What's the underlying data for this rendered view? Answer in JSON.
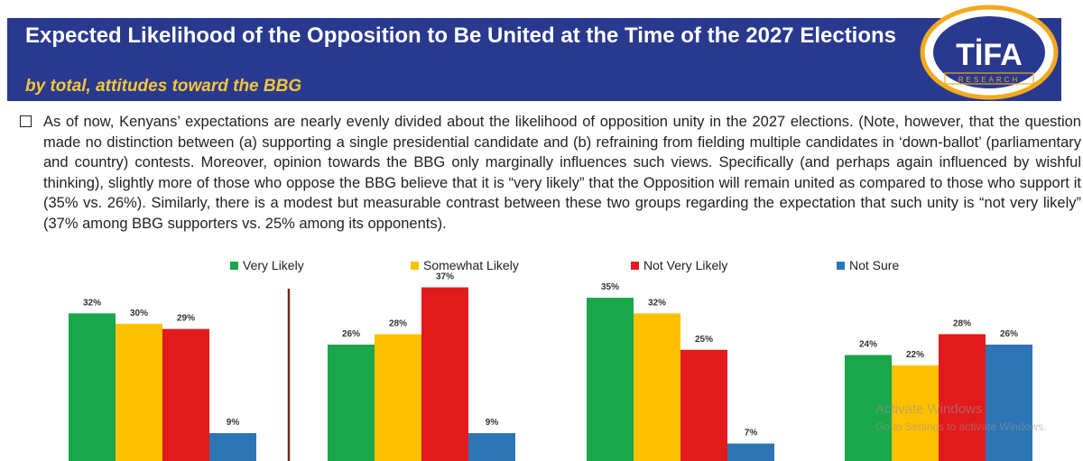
{
  "header": {
    "title": "Expected Likelihood of the Opposition to Be United at the Time of the 2027 Elections",
    "subtitle": "by total, attitudes toward the BBG"
  },
  "logo": {
    "text": "TİFA",
    "subtext": "RESEARCH"
  },
  "body": {
    "paragraph": "As of now, Kenyans’ expectations are nearly evenly divided about the likelihood of opposition unity in the 2027 elections. (Note, however, that the question made no distinction between (a) supporting a single presidential candidate and (b) refraining from fielding multiple candidates in ‘down-ballot’ (parliamentary and country) contests.  Moreover, opinion towards the BBG only marginally influences such views.  Specifically (and perhaps again influenced by wishful thinking), slightly more of those who oppose the BBG believe that it is “very likely” that the Opposition will remain united as compared to those who support it (35% vs. 26%).  Similarly, there is a modest but measurable contrast between these two groups regarding the expectation that such unity is “not very likely” (37% among BBG supporters vs. 25% among its opponents)."
  },
  "watermark": {
    "line1": "Activate Windows",
    "line2": "Go to Settings to activate Windows."
  },
  "colors": {
    "header_band": "#293a8e",
    "subtitle": "#f4c63b",
    "very_likely": "#1aa64a",
    "somewhat_likely": "#ffc000",
    "not_very_likely": "#e31a1c",
    "not_sure": "#2e75b6",
    "divider": "#6b2b1f"
  },
  "chart_data": {
    "type": "bar",
    "series": [
      {
        "name": "Very Likely",
        "values": [
          32,
          26,
          35,
          24
        ]
      },
      {
        "name": "Somewhat Likely",
        "values": [
          30,
          28,
          32,
          22
        ]
      },
      {
        "name": "Not Very Likely",
        "values": [
          29,
          37,
          25,
          28
        ]
      },
      {
        "name": "Not Sure",
        "values": [
          9,
          9,
          7,
          26
        ]
      }
    ],
    "data_labels": [
      [
        "32%",
        "30%",
        "29%",
        "9%"
      ],
      [
        "26%",
        "28%",
        "37%",
        "9%"
      ],
      [
        "35%",
        "32%",
        "25%",
        "7%"
      ],
      [
        "24%",
        "22%",
        "28%",
        "26%"
      ]
    ],
    "legend_position": "top",
    "grid": false
  }
}
